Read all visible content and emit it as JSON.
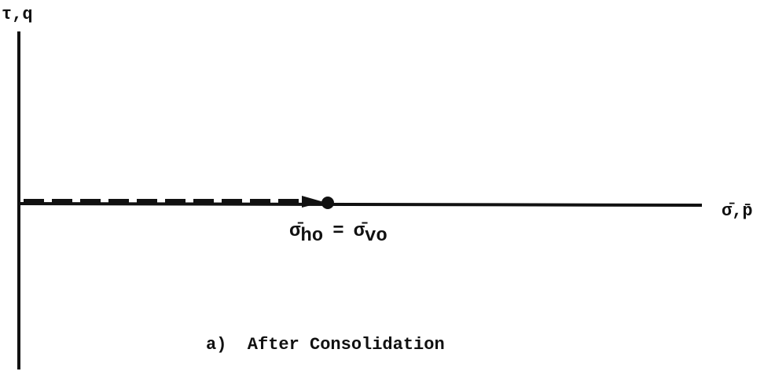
{
  "y_axis_label": "τ,q",
  "x_axis_label": "σ̄,p̄",
  "point_label": {
    "left": "σ̄",
    "left_sub": "ho",
    "sign": "=",
    "right": "σ̄",
    "right_sub": "vo"
  },
  "caption": "a)  After Consolidation"
}
